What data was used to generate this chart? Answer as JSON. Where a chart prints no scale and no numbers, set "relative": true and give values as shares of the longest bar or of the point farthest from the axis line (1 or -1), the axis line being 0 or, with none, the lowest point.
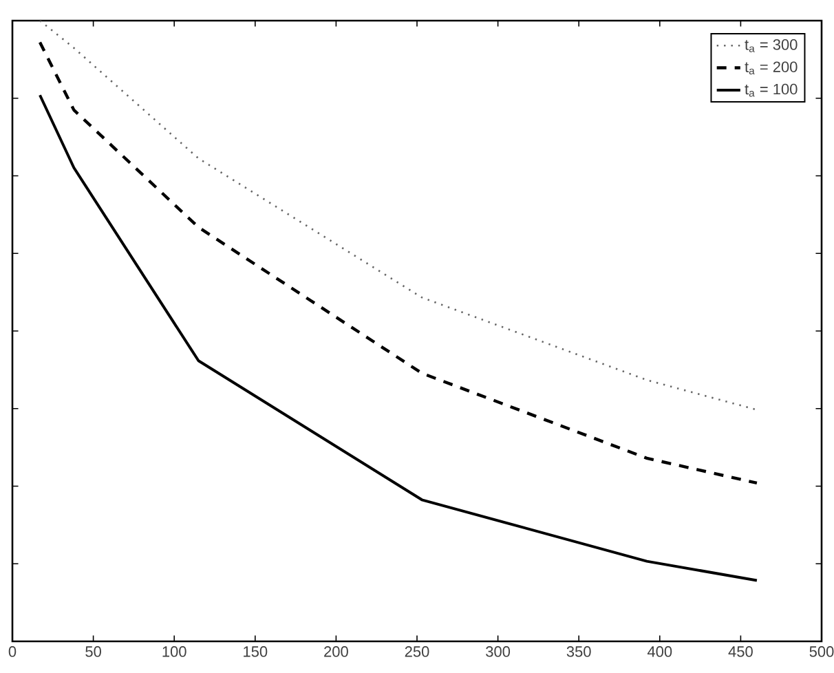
{
  "chart_data": {
    "type": "line",
    "relative": true,
    "tick_labels": "x",
    "legend": "top right",
    "xlim": [
      0,
      500
    ],
    "xticks": [
      0,
      50,
      100,
      150,
      200,
      250,
      300,
      350,
      400,
      450,
      500
    ],
    "series": [
      {
        "name": "t$_{a}$ = 300",
        "color": "#666666",
        "line_style": "dotted",
        "x": [
          17,
          38,
          115,
          253,
          392,
          460
        ],
        "values": [
          1,
          0.956,
          0.778,
          0.554,
          0.421,
          0.373
        ]
      },
      {
        "name": "t$_{a}$ = 200",
        "color": "#000000",
        "line_style": "dashed",
        "x": [
          17,
          38,
          115,
          253,
          392,
          460
        ],
        "values": [
          0.965,
          0.856,
          0.667,
          0.432,
          0.295,
          0.255
        ]
      },
      {
        "name": "t$_{a}$ = 100",
        "color": "#000000",
        "line_style": "solid",
        "x": [
          17,
          38,
          115,
          253,
          392,
          460
        ],
        "values": [
          0.88,
          0.763,
          0.452,
          0.228,
          0.129,
          0.098
        ]
      }
    ]
  }
}
